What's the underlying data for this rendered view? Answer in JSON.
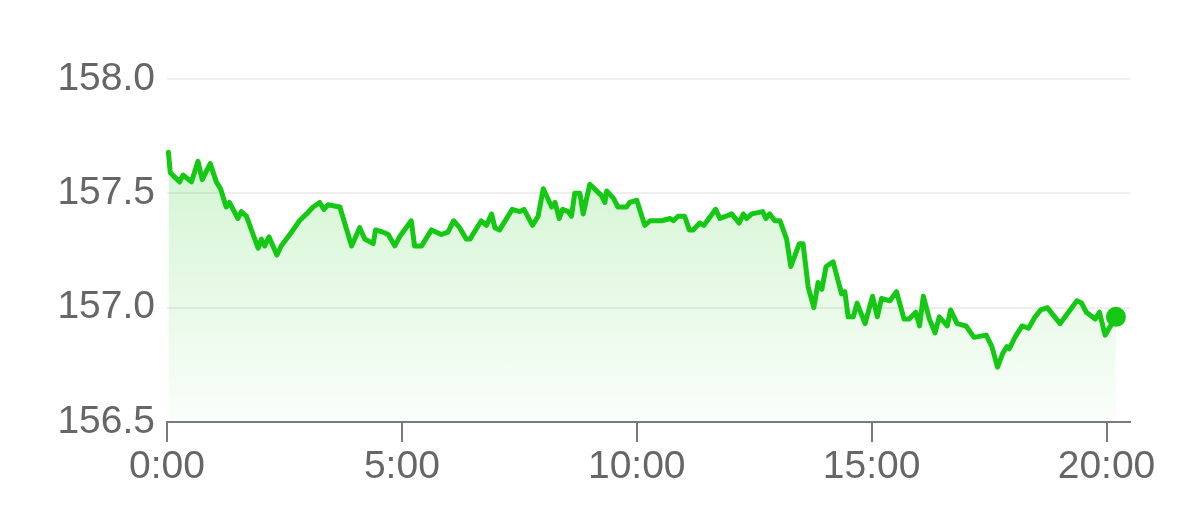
{
  "chart_data": {
    "type": "area",
    "x": [
      0.03,
      0.07,
      0.27,
      0.34,
      0.52,
      0.66,
      0.75,
      0.92,
      1.05,
      1.14,
      1.26,
      1.33,
      1.51,
      1.58,
      1.69,
      1.94,
      2.01,
      2.08,
      2.17,
      2.34,
      2.43,
      2.65,
      2.82,
      2.97,
      3.11,
      3.25,
      3.34,
      3.43,
      3.68,
      3.93,
      4.1,
      4.21,
      4.39,
      4.44,
      4.6,
      4.71,
      4.85,
      4.95,
      5.2,
      5.27,
      5.42,
      5.63,
      5.84,
      5.98,
      6.1,
      6.23,
      6.37,
      6.45,
      6.69,
      6.8,
      6.91,
      6.98,
      7.08,
      7.35,
      7.51,
      7.6,
      7.78,
      7.9,
      8.01,
      8.19,
      8.26,
      8.35,
      8.42,
      8.54,
      8.61,
      8.68,
      8.79,
      8.86,
      9.0,
      9.25,
      9.32,
      9.36,
      9.5,
      9.6,
      9.78,
      9.85,
      10.0,
      10.17,
      10.28,
      10.53,
      10.71,
      10.78,
      10.88,
      11.02,
      11.12,
      11.2,
      11.34,
      11.43,
      11.68,
      11.77,
      11.9,
      12.02,
      12.18,
      12.27,
      12.34,
      12.45,
      12.68,
      12.75,
      12.83,
      12.94,
      13.05,
      13.19,
      13.28,
      13.37,
      13.46,
      13.54,
      13.65,
      13.77,
      13.86,
      13.94,
      14.03,
      14.18,
      14.36,
      14.43,
      14.5,
      14.61,
      14.69,
      14.86,
      15.02,
      15.12,
      15.21,
      15.39,
      15.53,
      15.69,
      15.8,
      15.94,
      16.02,
      16.1,
      16.23,
      16.35,
      16.44,
      16.61,
      16.68,
      16.82,
      17.01,
      17.18,
      17.44,
      17.56,
      17.68,
      17.79,
      17.88,
      17.93,
      18.05,
      18.2,
      18.34,
      18.48,
      18.6,
      18.74,
      19.01,
      19.19,
      19.37,
      19.47,
      19.57,
      19.76,
      19.85,
      19.97,
      20.2
    ],
    "series": [
      {
        "color": "#14c814",
        "values": [
          157.68,
          157.59,
          157.55,
          157.58,
          157.55,
          157.64,
          157.56,
          157.63,
          157.55,
          157.52,
          157.44,
          157.46,
          157.39,
          157.42,
          157.4,
          157.26,
          157.3,
          157.27,
          157.31,
          157.23,
          157.27,
          157.33,
          157.38,
          157.41,
          157.44,
          157.46,
          157.43,
          157.45,
          157.44,
          157.27,
          157.35,
          157.3,
          157.28,
          157.34,
          157.33,
          157.32,
          157.27,
          157.31,
          157.38,
          157.27,
          157.27,
          157.34,
          157.32,
          157.33,
          157.38,
          157.35,
          157.3,
          157.3,
          157.38,
          157.36,
          157.41,
          157.35,
          157.34,
          157.43,
          157.42,
          157.43,
          157.36,
          157.4,
          157.52,
          157.44,
          157.46,
          157.39,
          157.43,
          157.42,
          157.4,
          157.5,
          157.5,
          157.41,
          157.54,
          157.49,
          157.46,
          157.51,
          157.48,
          157.44,
          157.44,
          157.46,
          157.47,
          157.36,
          157.38,
          157.38,
          157.39,
          157.38,
          157.4,
          157.4,
          157.34,
          157.34,
          157.37,
          157.36,
          157.43,
          157.39,
          157.4,
          157.41,
          157.37,
          157.41,
          157.39,
          157.41,
          157.42,
          157.39,
          157.41,
          157.38,
          157.38,
          157.3,
          157.18,
          157.23,
          157.28,
          157.28,
          157.09,
          157.0,
          157.11,
          157.08,
          157.18,
          157.2,
          157.06,
          157.07,
          156.96,
          156.96,
          157.02,
          156.93,
          157.05,
          156.96,
          157.04,
          157.03,
          157.07,
          156.95,
          156.95,
          156.98,
          156.92,
          157.05,
          156.95,
          156.89,
          156.96,
          156.92,
          156.99,
          156.93,
          156.92,
          156.87,
          156.88,
          156.83,
          156.74,
          156.8,
          156.83,
          156.82,
          156.87,
          156.92,
          156.91,
          156.96,
          156.99,
          157.0,
          156.93,
          156.98,
          157.03,
          157.02,
          156.98,
          156.95,
          156.98,
          156.88,
          156.96
        ]
      },
      {
        "type": "scatter",
        "color": "#14c814",
        "x": [
          20.2
        ],
        "values": [
          156.96
        ]
      }
    ],
    "xlim": [
      0,
      20.5
    ],
    "xticks": [
      {
        "value": 0,
        "label": "0:00"
      },
      {
        "value": 5,
        "label": "5:00"
      },
      {
        "value": 10,
        "label": "10:00"
      },
      {
        "value": 15,
        "label": "15:00"
      },
      {
        "value": 20,
        "label": "20:00"
      }
    ],
    "ylim": [
      156.5,
      158.0
    ],
    "yticks": [
      156.5,
      {
        "value": 157,
        "label": "157.0"
      },
      157.5,
      {
        "value": 158,
        "label": "158.0"
      }
    ],
    "grid": "y"
  }
}
